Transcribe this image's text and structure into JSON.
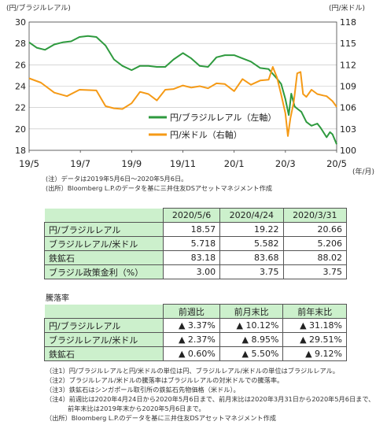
{
  "chart_data": {
    "type": "line",
    "x_start": "2019-05-06",
    "x_end": "2020-05-06",
    "x_ticks": [
      "19/5",
      "19/7",
      "19/9",
      "19/11",
      "20/1",
      "20/3",
      "20/5"
    ],
    "x_unit": "(年/月)",
    "y_left": {
      "label": "(円/ブラジルレアル)",
      "min": 18,
      "max": 30,
      "ticks": [
        "18",
        "20",
        "22",
        "24",
        "26",
        "28",
        "30"
      ]
    },
    "y_right": {
      "label": "(円/米ドル)",
      "min": 100,
      "max": 118,
      "ticks": [
        "100",
        "103",
        "106",
        "109",
        "112",
        "115",
        "118"
      ]
    },
    "grid": true,
    "legend_position": "right-middle",
    "series": [
      {
        "name": "円/ブラジルレアル（左軸）",
        "axis": "left",
        "color": "#2e9a3e",
        "points": [
          [
            "2019-05-06",
            28.1
          ],
          [
            "2019-05-15",
            27.6
          ],
          [
            "2019-05-25",
            27.4
          ],
          [
            "2019-06-05",
            27.9
          ],
          [
            "2019-06-15",
            28.1
          ],
          [
            "2019-06-25",
            28.2
          ],
          [
            "2019-07-05",
            28.6
          ],
          [
            "2019-07-15",
            28.7
          ],
          [
            "2019-07-25",
            28.6
          ],
          [
            "2019-08-05",
            27.8
          ],
          [
            "2019-08-15",
            26.5
          ],
          [
            "2019-08-25",
            25.9
          ],
          [
            "2019-09-05",
            25.5
          ],
          [
            "2019-09-15",
            25.9
          ],
          [
            "2019-09-25",
            25.9
          ],
          [
            "2019-10-05",
            25.8
          ],
          [
            "2019-10-15",
            25.8
          ],
          [
            "2019-10-25",
            26.5
          ],
          [
            "2019-11-05",
            27.1
          ],
          [
            "2019-11-15",
            26.6
          ],
          [
            "2019-11-25",
            25.9
          ],
          [
            "2019-12-05",
            25.8
          ],
          [
            "2019-12-15",
            26.7
          ],
          [
            "2019-12-25",
            26.9
          ],
          [
            "2020-01-05",
            26.9
          ],
          [
            "2020-01-15",
            26.6
          ],
          [
            "2020-01-25",
            26.3
          ],
          [
            "2020-02-05",
            25.7
          ],
          [
            "2020-02-15",
            25.6
          ],
          [
            "2020-02-25",
            24.7
          ],
          [
            "2020-03-01",
            24.2
          ],
          [
            "2020-03-06",
            22.8
          ],
          [
            "2020-03-10",
            21.3
          ],
          [
            "2020-03-13",
            23.3
          ],
          [
            "2020-03-17",
            22.1
          ],
          [
            "2020-03-20",
            21.9
          ],
          [
            "2020-03-25",
            21.6
          ],
          [
            "2020-03-31",
            20.66
          ],
          [
            "2020-04-06",
            20.3
          ],
          [
            "2020-04-13",
            20.5
          ],
          [
            "2020-04-17",
            20.1
          ],
          [
            "2020-04-24",
            19.22
          ],
          [
            "2020-04-28",
            19.7
          ],
          [
            "2020-05-01",
            19.5
          ],
          [
            "2020-05-06",
            18.57
          ]
        ]
      },
      {
        "name": "円/米ドル（右軸）",
        "axis": "right",
        "color": "#f59a16",
        "points": [
          [
            "2019-05-06",
            110.1
          ],
          [
            "2019-05-20",
            109.5
          ],
          [
            "2019-06-05",
            108.1
          ],
          [
            "2019-06-20",
            107.6
          ],
          [
            "2019-07-05",
            108.5
          ],
          [
            "2019-07-25",
            108.4
          ],
          [
            "2019-08-05",
            106.2
          ],
          [
            "2019-08-15",
            105.9
          ],
          [
            "2019-08-25",
            105.8
          ],
          [
            "2019-09-05",
            106.6
          ],
          [
            "2019-09-15",
            108.2
          ],
          [
            "2019-09-25",
            107.9
          ],
          [
            "2019-10-05",
            107.0
          ],
          [
            "2019-10-15",
            108.5
          ],
          [
            "2019-10-25",
            108.6
          ],
          [
            "2019-11-05",
            109.1
          ],
          [
            "2019-11-15",
            108.8
          ],
          [
            "2019-11-25",
            109.0
          ],
          [
            "2019-12-05",
            108.7
          ],
          [
            "2019-12-15",
            109.4
          ],
          [
            "2019-12-25",
            109.3
          ],
          [
            "2020-01-05",
            108.3
          ],
          [
            "2020-01-15",
            110.0
          ],
          [
            "2020-01-25",
            109.2
          ],
          [
            "2020-02-05",
            109.8
          ],
          [
            "2020-02-15",
            109.9
          ],
          [
            "2020-02-20",
            111.7
          ],
          [
            "2020-02-25",
            110.2
          ],
          [
            "2020-03-01",
            107.8
          ],
          [
            "2020-03-06",
            105.2
          ],
          [
            "2020-03-09",
            102.0
          ],
          [
            "2020-03-12",
            104.5
          ],
          [
            "2020-03-16",
            106.8
          ],
          [
            "2020-03-20",
            110.8
          ],
          [
            "2020-03-24",
            111.0
          ],
          [
            "2020-03-27",
            107.9
          ],
          [
            "2020-03-31",
            107.5
          ],
          [
            "2020-04-06",
            108.5
          ],
          [
            "2020-04-13",
            107.9
          ],
          [
            "2020-04-20",
            107.7
          ],
          [
            "2020-04-24",
            107.6
          ],
          [
            "2020-05-01",
            106.9
          ],
          [
            "2020-05-06",
            106.1
          ]
        ]
      }
    ]
  },
  "chart_notes": {
    "note1": "(注）データは2019年5月6日～2020年5月6日。",
    "note2": "(出所）Bloomberg L.P.のデータを基に三井住友DSアセットマネジメント作成"
  },
  "table1": {
    "headers": [
      "2020/5/6",
      "2020/4/24",
      "2020/3/31"
    ],
    "rows": [
      {
        "label": "円/ブラジルレアル",
        "values": [
          "18.57",
          "19.22",
          "20.66"
        ]
      },
      {
        "label": "ブラジルレアル/米ドル",
        "values": [
          "5.718",
          "5.582",
          "5.206"
        ]
      },
      {
        "label": "鉄鉱石",
        "values": [
          "83.18",
          "83.68",
          "88.02"
        ]
      },
      {
        "label": "ブラジル政策金利（%）",
        "values": [
          "3.00",
          "3.75",
          "3.75"
        ]
      }
    ]
  },
  "table2": {
    "caption": "騰落率",
    "headers": [
      "前週比",
      "前月末比",
      "前年末比"
    ],
    "rows": [
      {
        "label": "円/ブラジルレアル",
        "values": [
          "▲ 3.37%",
          "▲ 10.12%",
          "▲ 31.18%"
        ]
      },
      {
        "label": "ブラジルレアル/米ドル",
        "values": [
          "▲ 2.37%",
          "▲ 8.95%",
          "▲ 29.51%"
        ]
      },
      {
        "label": "鉄鉱石",
        "values": [
          "▲ 0.60%",
          "▲ 5.50%",
          "▲ 9.12%"
        ]
      }
    ]
  },
  "footnotes": [
    "（注1）円/ブラジルレアルと円/米ドルの単位は円、ブラジルレアル/米ドルの単位はブラジルレアル。",
    "（注2）ブラジルレアル/米ドルの騰落率はブラジルレアルの対米ドルでの騰落率。",
    "（注3）鉄鉱石はシンガポール取引所の鉄鉱石先物価格（米ドル）。",
    "（注4）前週比は2020年4月24日から2020年5月6日まで、前月末比は2020年3月31日から2020年5月6日まで、",
    "前年末比は2019年末から2020年5月6日まで。",
    "（出所）Bloomberg L.P.のデータを基に三井住友DSアセットマネジメント作成"
  ]
}
